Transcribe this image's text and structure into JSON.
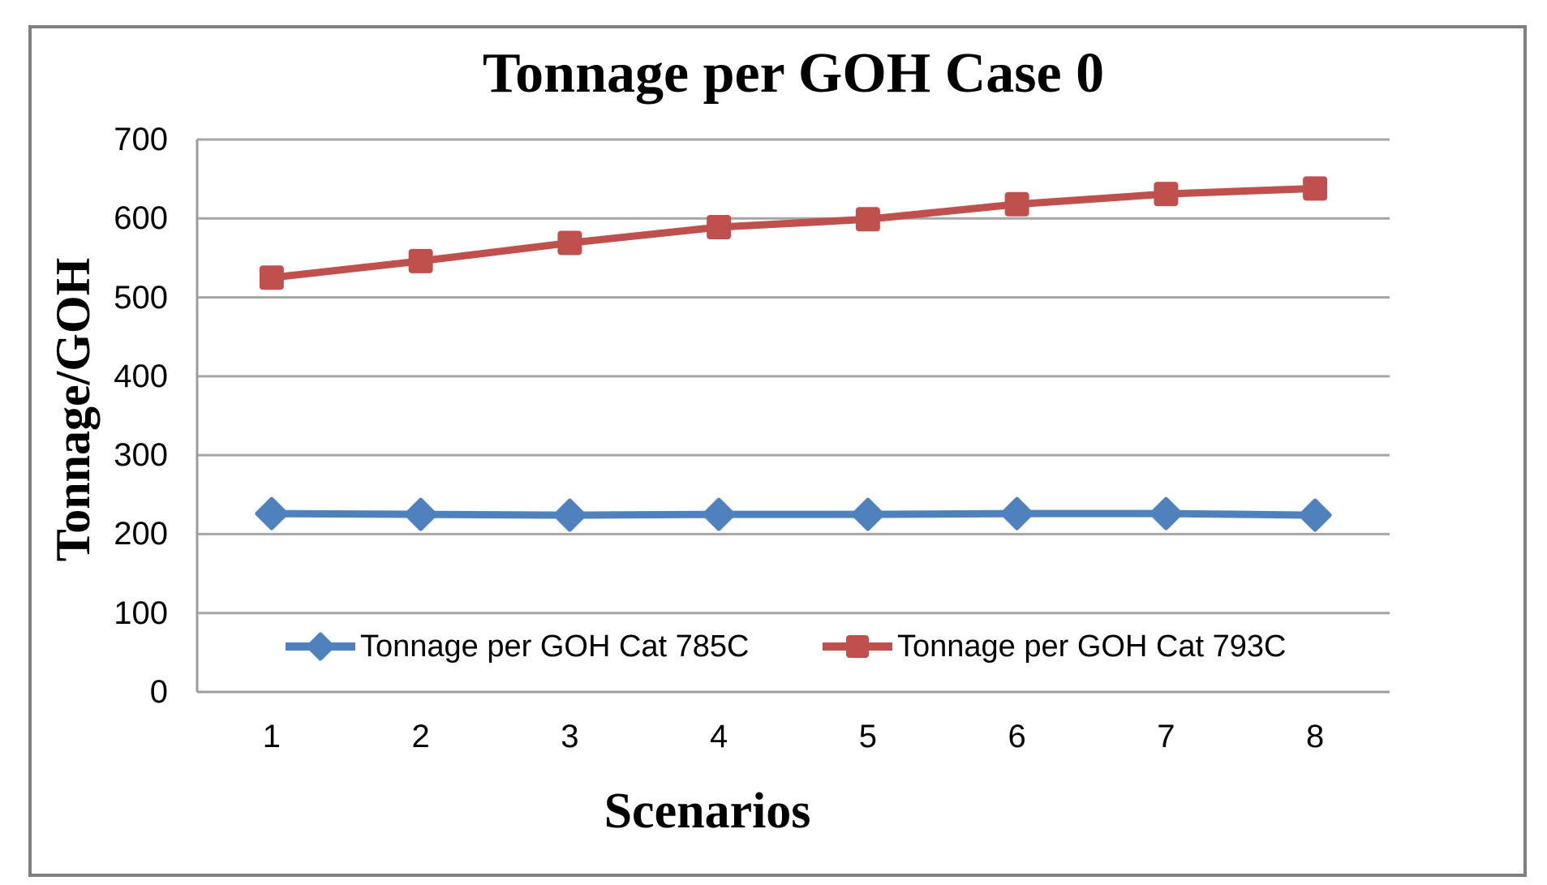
{
  "figure": {
    "border_color": "#808080",
    "background_color": "#ffffff"
  },
  "chart_data": {
    "type": "line",
    "title": "Tonnage per GOH Case 0",
    "xlabel": "Scenarios",
    "ylabel": "Tonnage/GOH",
    "categories": [
      "1",
      "2",
      "3",
      "4",
      "5",
      "6",
      "7",
      "8"
    ],
    "series": [
      {
        "name": "Tonnage per GOH Cat 785C",
        "marker": "diamond",
        "color": "#4F81BD",
        "values": [
          226,
          225,
          224,
          225,
          225,
          226,
          226,
          224
        ]
      },
      {
        "name": "Tonnage per GOH Cat 793C",
        "marker": "square",
        "color": "#C0504D",
        "values": [
          525,
          546,
          569,
          589,
          599,
          618,
          631,
          638
        ]
      }
    ],
    "ylim": [
      0,
      700
    ],
    "yticks": [
      0,
      100,
      200,
      300,
      400,
      500,
      600,
      700
    ],
    "grid": true,
    "gridline_color": "#A6A6A6",
    "axis_color": "#9C9C9C",
    "legend_position": "bottom-inside"
  }
}
